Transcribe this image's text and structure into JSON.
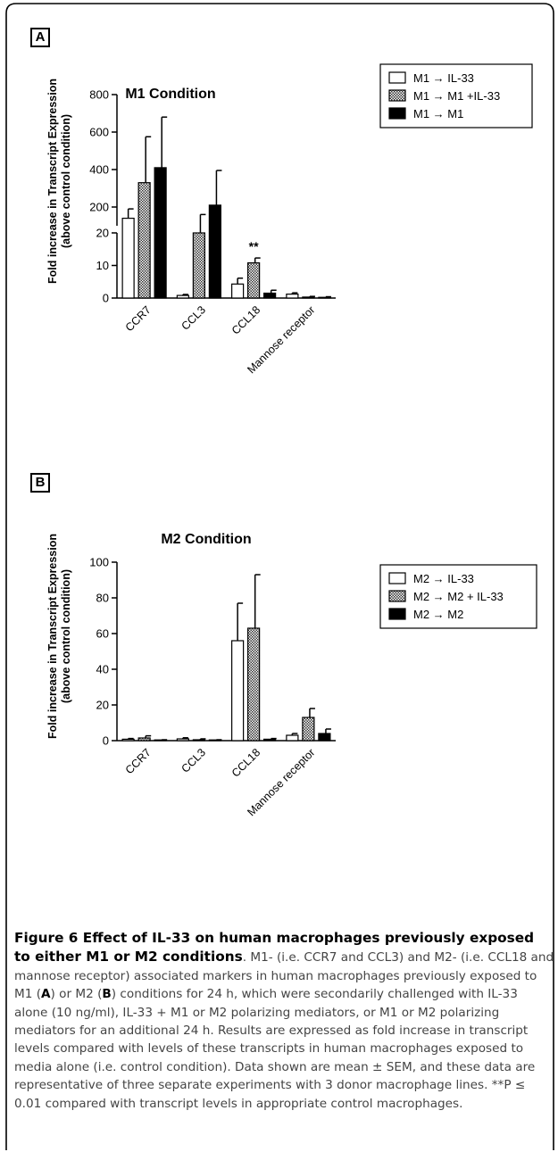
{
  "panels": [
    {
      "label": "A"
    },
    {
      "label": "B"
    }
  ],
  "chart_data": [
    {
      "type": "bar",
      "title": "M1 Condition",
      "ylabel": "Fold increase in Transcript Expression\n(above control condition)",
      "categories": [
        "CCR7",
        "CCL3",
        "CCL18",
        "Mannose receptor"
      ],
      "y_scale": "broken",
      "y_break": {
        "lower": [
          0,
          20
        ],
        "upper": [
          100,
          800
        ]
      },
      "yticks_lower": [
        0,
        10,
        20
      ],
      "yticks_upper": [
        200,
        400,
        600,
        800
      ],
      "series": [
        {
          "name": "M1 → IL-33",
          "pattern": "white",
          "values": [
            140,
            0.8,
            4.3,
            1.2
          ],
          "errors": [
            50,
            0.3,
            1.8,
            0.4
          ]
        },
        {
          "name": "M1 → M1 +IL-33",
          "pattern": "checker",
          "values": [
            330,
            20,
            10.8,
            0.3
          ],
          "errors": [
            245,
            140,
            1.5,
            0.2
          ]
        },
        {
          "name": "M1 → M1",
          "pattern": "black",
          "values": [
            410,
            210,
            1.5,
            0.2
          ],
          "errors": [
            270,
            185,
            0.9,
            0.2
          ]
        }
      ],
      "annotations": [
        {
          "category": "CCL18",
          "series": 1,
          "text": "**"
        }
      ],
      "legend": "right"
    },
    {
      "type": "bar",
      "title": "M2 Condition",
      "ylabel": "Fold increase in Transcript Expression\n(above control condition)",
      "categories": [
        "CCR7",
        "CCL3",
        "CCL18",
        "Mannose receptor"
      ],
      "ylim": [
        0,
        100
      ],
      "yticks": [
        0,
        20,
        40,
        60,
        80,
        100
      ],
      "series": [
        {
          "name": "M2 → IL-33",
          "pattern": "white",
          "values": [
            0.8,
            1.0,
            56,
            3
          ],
          "errors": [
            0.4,
            0.6,
            21,
            1
          ]
        },
        {
          "name": "M2 → M2 + IL-33",
          "pattern": "checker",
          "values": [
            1.5,
            0.5,
            63,
            13
          ],
          "errors": [
            1.2,
            0.5,
            30,
            5
          ]
        },
        {
          "name": "M2 → M2",
          "pattern": "black",
          "values": [
            0.3,
            0.3,
            0.8,
            4
          ],
          "errors": [
            0.2,
            0.2,
            0.4,
            2.5
          ]
        }
      ],
      "legend": "right"
    }
  ],
  "caption": {
    "title": "Figure 6 Effect of IL-33 on human macrophages previously exposed to either M1 or M2 conditions",
    "body_1": ". M1- (i.e. CCR7 and CCL3) and M2- (i.e. CCL18 and mannose receptor) associated markers in human macrophages previously exposed to M1 (",
    "ref_a": "A",
    "body_2": ") or M2 (",
    "ref_b": "B",
    "body_3": ") conditions for 24 h, which were secondarily challenged with IL-33 alone (10 ng/ml), IL-33 + M1 or M2 polarizing mediators, or M1 or M2 polarizing mediators for an additional 24 h. Results are expressed as fold increase in transcript levels compared with levels of these transcripts in human macrophages exposed to media alone (i.e. control condition). Data shown are mean ± SEM, and these data are representative of three separate experiments with 3 donor macrophage lines. **P ≤ 0.01 compared with transcript levels in appropriate control macrophages."
  }
}
